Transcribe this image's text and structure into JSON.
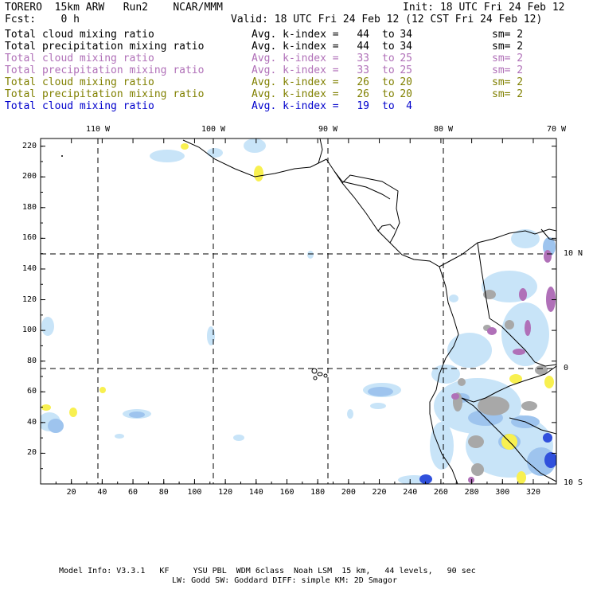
{
  "header": {
    "run_title": "TORERO  15km ARW   Run2    NCAR/MMM",
    "init": "Init: 18 UTC Fri 24 Feb 12",
    "fcst": "Fcst:    0 h",
    "valid": "Valid: 18 UTC Fri 24 Feb 12 (12 CST Fri 24 Feb 12)"
  },
  "legend": [
    {
      "field": "Total cloud mixing ratio",
      "index_label": "Avg. k-index =",
      "from": "44",
      "to_word": "to",
      "to": "34",
      "sm": "sm= 2",
      "color": "#000000"
    },
    {
      "field": "Total precipitation mixing ratio",
      "index_label": "Avg. k-index =",
      "from": "44",
      "to_word": "to",
      "to": "34",
      "sm": "sm= 2",
      "color": "#000000"
    },
    {
      "field": "Total cloud mixing ratio",
      "index_label": "Avg. k-index =",
      "from": "33",
      "to_word": "to",
      "to": "25",
      "sm": "sm= 2",
      "color": "#b070b8"
    },
    {
      "field": "Total precipitation mixing ratio",
      "index_label": "Avg. k-index =",
      "from": "33",
      "to_word": "to",
      "to": "25",
      "sm": "sm= 2",
      "color": "#b070b8"
    },
    {
      "field": "Total cloud mixing ratio",
      "index_label": "Avg. k-index =",
      "from": "26",
      "to_word": "to",
      "to": "20",
      "sm": "sm= 2",
      "color": "#808000"
    },
    {
      "field": "Total precipitation mixing ratio",
      "index_label": "Avg. k-index =",
      "from": "26",
      "to_word": "to",
      "to": "20",
      "sm": "sm= 2",
      "color": "#808000"
    },
    {
      "field": "Total cloud mixing ratio",
      "index_label": "Avg. k-index =",
      "from": "19",
      "to_word": "to",
      "to": "4",
      "sm": "",
      "color": "#0000cc"
    }
  ],
  "map": {
    "top_lon_labels": [
      "110 W",
      "100 W",
      "90 W",
      "80 W",
      "70 W"
    ],
    "right_lat_labels": [
      "10 N",
      "0",
      "10 S"
    ],
    "left_ticks": [
      "220",
      "200",
      "180",
      "160",
      "140",
      "120",
      "100",
      "80",
      "60",
      "40",
      "20"
    ],
    "bottom_ticks": [
      "20",
      "40",
      "60",
      "80",
      "100",
      "120",
      "140",
      "160",
      "180",
      "200",
      "220",
      "240",
      "260",
      "280",
      "300",
      "320"
    ],
    "grid_range": {
      "x": [
        0,
        335
      ],
      "y": [
        0,
        225
      ]
    },
    "colors": {
      "light_blue": "#c8e4f8",
      "blue": "#9ec4ee",
      "dark_blue": "#3050dc",
      "purple": "#b070b8",
      "gray": "#a8a8a8",
      "yellow": "#f8f050",
      "coast": "#000000"
    }
  },
  "footer": {
    "line1": "Model Info: V3.3.1   KF     YSU PBL  WDM 6class  Noah LSM  15 km,   44 levels,   90 sec",
    "line2": "LW: Godd SW: Goddard DIFF: simple KM: 2D Smagor"
  }
}
